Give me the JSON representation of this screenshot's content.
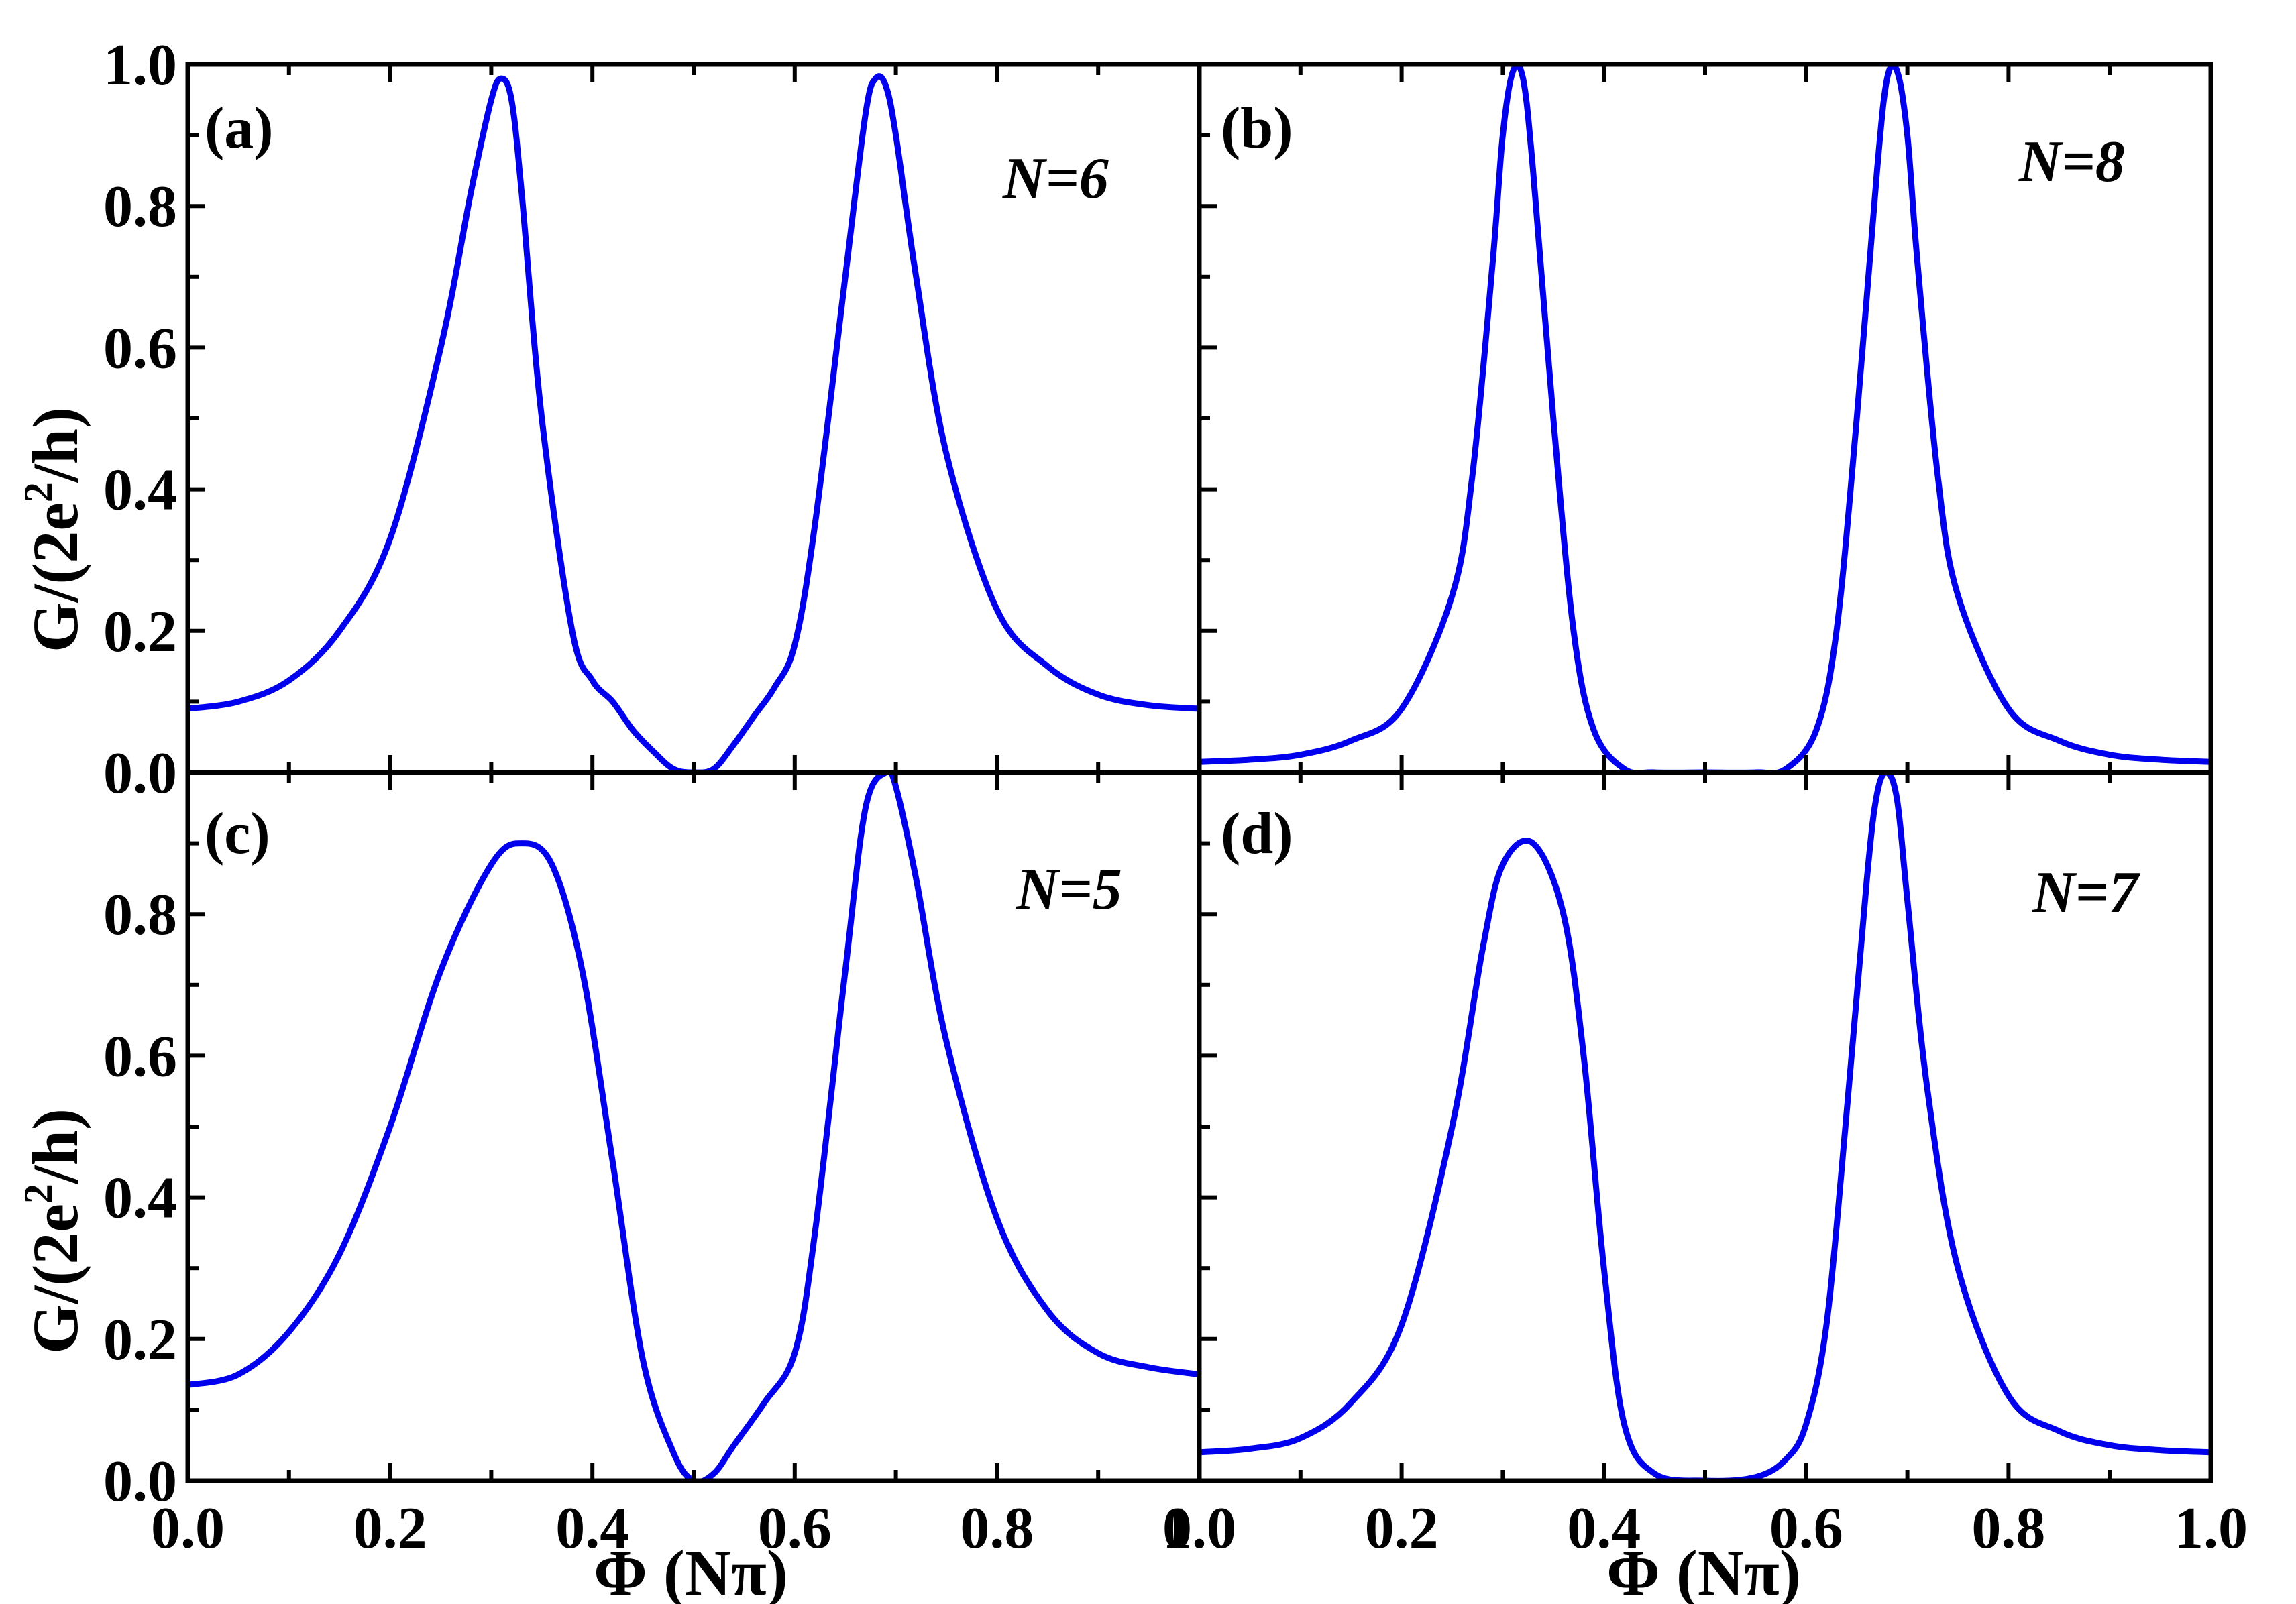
{
  "figure": {
    "y_axis_title_main": "G/(2e",
    "y_axis_title_sup": "2",
    "y_axis_title_end": "/h)",
    "x_axis_title": "Φ (Nπ)",
    "x_tick_labels": [
      "0.0",
      "0.2",
      "0.4",
      "0.6",
      "0.8",
      "1.0"
    ],
    "y_tick_labels": [
      "0.0",
      "0.2",
      "0.4",
      "0.6",
      "0.8",
      "1.0"
    ],
    "line_color": "#0000ee"
  },
  "chart_data": [
    {
      "type": "line",
      "panel": "(a)",
      "label": "N=6",
      "xlim": [
        0,
        1
      ],
      "ylim": [
        0,
        1
      ],
      "series": [
        {
          "x": [
            0.0,
            0.05,
            0.1,
            0.15,
            0.2,
            0.25,
            0.28,
            0.3,
            0.31,
            0.32,
            0.33,
            0.35,
            0.38,
            0.4,
            0.42,
            0.44,
            0.46,
            0.48,
            0.5,
            0.52,
            0.54,
            0.56,
            0.58,
            0.6,
            0.62,
            0.65,
            0.67,
            0.68,
            0.69,
            0.7,
            0.72,
            0.75,
            0.8,
            0.85,
            0.9,
            0.95,
            1.0
          ],
          "y": [
            0.09,
            0.1,
            0.13,
            0.2,
            0.33,
            0.6,
            0.82,
            0.95,
            0.98,
            0.95,
            0.82,
            0.5,
            0.2,
            0.13,
            0.1,
            0.06,
            0.03,
            0.005,
            0.0,
            0.005,
            0.04,
            0.08,
            0.12,
            0.18,
            0.35,
            0.7,
            0.93,
            0.98,
            0.97,
            0.9,
            0.7,
            0.45,
            0.23,
            0.15,
            0.11,
            0.095,
            0.09
          ]
        }
      ]
    },
    {
      "type": "line",
      "panel": "(b)",
      "label": "N=8",
      "xlim": [
        0,
        1
      ],
      "ylim": [
        0,
        1
      ],
      "series": [
        {
          "x": [
            0.0,
            0.05,
            0.1,
            0.15,
            0.2,
            0.25,
            0.27,
            0.29,
            0.3,
            0.31,
            0.32,
            0.33,
            0.35,
            0.37,
            0.39,
            0.42,
            0.45,
            0.5,
            0.55,
            0.58,
            0.61,
            0.63,
            0.65,
            0.67,
            0.68,
            0.69,
            0.7,
            0.71,
            0.73,
            0.75,
            0.8,
            0.85,
            0.9,
            0.95,
            1.0
          ],
          "y": [
            0.015,
            0.018,
            0.025,
            0.045,
            0.09,
            0.25,
            0.42,
            0.72,
            0.9,
            0.99,
            0.98,
            0.85,
            0.5,
            0.2,
            0.06,
            0.005,
            0.0,
            0.0,
            0.0,
            0.005,
            0.06,
            0.2,
            0.5,
            0.85,
            0.98,
            0.99,
            0.9,
            0.72,
            0.42,
            0.25,
            0.09,
            0.045,
            0.025,
            0.018,
            0.015
          ]
        }
      ]
    },
    {
      "type": "line",
      "panel": "(c)",
      "label": "N=5",
      "xlim": [
        0,
        1
      ],
      "ylim": [
        0,
        1
      ],
      "series": [
        {
          "x": [
            0.0,
            0.05,
            0.1,
            0.15,
            0.2,
            0.25,
            0.3,
            0.33,
            0.36,
            0.39,
            0.42,
            0.45,
            0.48,
            0.5,
            0.52,
            0.54,
            0.57,
            0.6,
            0.62,
            0.65,
            0.67,
            0.69,
            0.7,
            0.72,
            0.75,
            0.8,
            0.85,
            0.9,
            0.95,
            1.0
          ],
          "y": [
            0.135,
            0.15,
            0.21,
            0.32,
            0.5,
            0.72,
            0.87,
            0.9,
            0.87,
            0.72,
            0.45,
            0.17,
            0.04,
            0.0,
            0.01,
            0.05,
            0.11,
            0.18,
            0.35,
            0.72,
            0.95,
            1.0,
            0.98,
            0.85,
            0.62,
            0.37,
            0.24,
            0.18,
            0.16,
            0.15
          ]
        }
      ]
    },
    {
      "type": "line",
      "panel": "(d)",
      "label": "N=7",
      "xlim": [
        0,
        1
      ],
      "ylim": [
        0,
        1
      ],
      "series": [
        {
          "x": [
            0.0,
            0.05,
            0.1,
            0.15,
            0.2,
            0.25,
            0.28,
            0.3,
            0.33,
            0.36,
            0.38,
            0.4,
            0.42,
            0.45,
            0.5,
            0.55,
            0.58,
            0.6,
            0.62,
            0.64,
            0.66,
            0.67,
            0.68,
            0.69,
            0.7,
            0.72,
            0.75,
            0.8,
            0.85,
            0.9,
            0.95,
            1.0
          ],
          "y": [
            0.04,
            0.045,
            0.06,
            0.11,
            0.22,
            0.5,
            0.75,
            0.87,
            0.9,
            0.8,
            0.6,
            0.3,
            0.08,
            0.01,
            0.0,
            0.005,
            0.03,
            0.08,
            0.22,
            0.52,
            0.85,
            0.97,
            1.0,
            0.96,
            0.82,
            0.55,
            0.3,
            0.12,
            0.07,
            0.05,
            0.043,
            0.04
          ]
        }
      ]
    }
  ]
}
